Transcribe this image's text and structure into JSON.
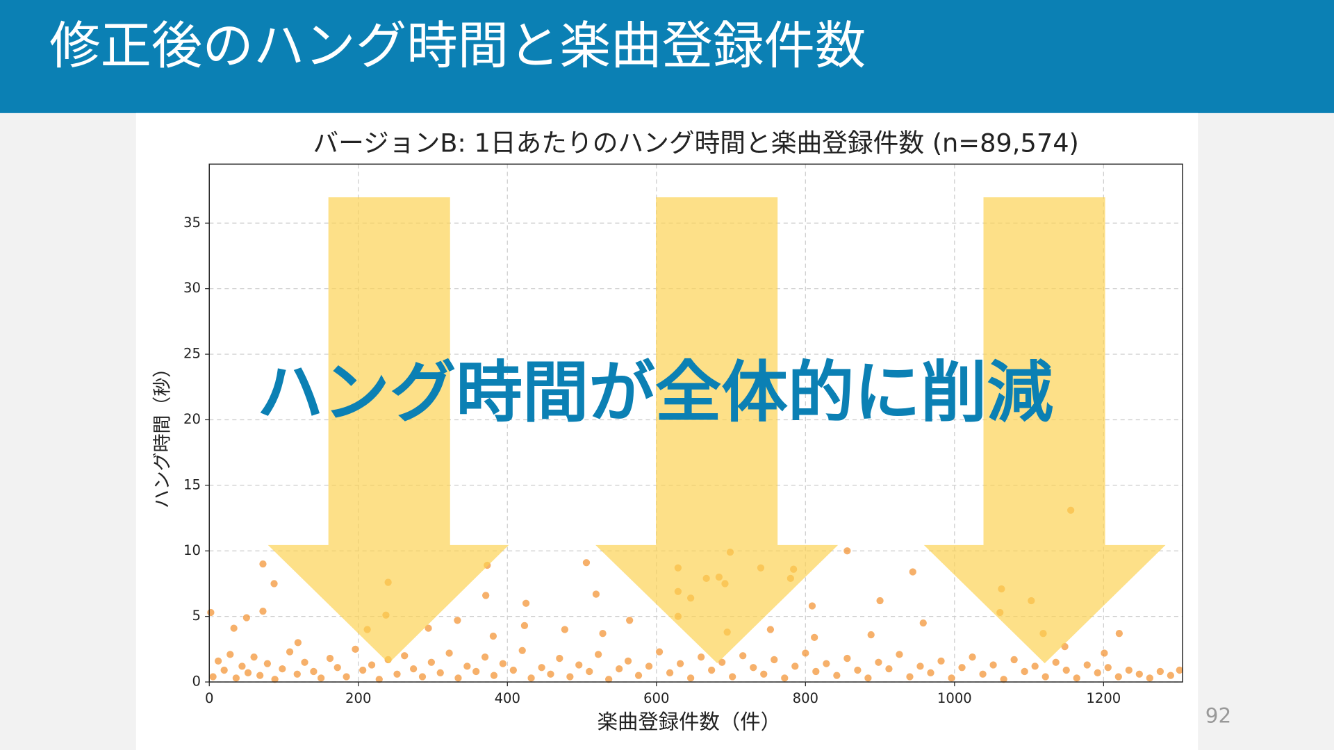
{
  "slide": {
    "title": "修正後のハング時間と楽曲登録件数",
    "annotation": "ハング時間が全体的に削減",
    "page_number": "92"
  },
  "chart_data": {
    "type": "scatter",
    "title": "バージョンB: 1日あたりのハング時間と楽曲登録件数 (n=89,574)",
    "x_label": "楽曲登録件数（件）",
    "y_label": "ハング時間（秒）",
    "x": [
      5,
      12,
      20,
      28,
      36,
      44,
      52,
      60,
      68,
      78,
      88,
      98,
      108,
      118,
      128,
      140,
      150,
      162,
      172,
      184,
      196,
      206,
      218,
      228,
      240,
      252,
      262,
      274,
      286,
      298,
      310,
      322,
      334,
      346,
      358,
      370,
      382,
      394,
      408,
      420,
      432,
      446,
      458,
      470,
      484,
      496,
      510,
      522,
      536,
      550,
      562,
      576,
      590,
      604,
      618,
      632,
      646,
      660,
      674,
      688,
      702,
      716,
      730,
      744,
      758,
      772,
      786,
      800,
      814,
      828,
      842,
      856,
      870,
      884,
      898,
      912,
      926,
      940,
      954,
      968,
      982,
      996,
      1010,
      1024,
      1038,
      1052,
      1066,
      1080,
      1094,
      1108,
      1122,
      1136,
      1150,
      1164,
      1178,
      1192,
      1206,
      1220,
      1234,
      1248,
      1262,
      1276,
      1290,
      1302,
      72,
      87,
      2,
      72,
      240,
      237,
      373,
      371,
      506,
      425,
      519,
      629,
      629,
      646,
      667,
      684,
      699,
      692,
      740,
      784,
      780,
      809,
      856,
      944,
      900,
      1063,
      1103,
      1156,
      1061,
      1221,
      1119,
      958,
      888,
      812,
      753,
      695,
      629,
      564,
      528,
      477,
      423,
      381,
      333,
      294,
      212,
      119,
      50,
      33,
      1148,
      1201
    ],
    "y": [
      0.4,
      1.6,
      0.9,
      2.1,
      0.3,
      1.2,
      0.7,
      1.9,
      0.5,
      1.4,
      0.2,
      1.0,
      2.3,
      0.6,
      1.5,
      0.8,
      0.3,
      1.8,
      1.1,
      0.4,
      2.5,
      0.9,
      1.3,
      0.2,
      1.7,
      0.6,
      2.0,
      1.0,
      0.4,
      1.5,
      0.7,
      2.2,
      0.3,
      1.2,
      0.8,
      1.9,
      0.5,
      1.4,
      0.9,
      2.4,
      0.3,
      1.1,
      0.6,
      1.8,
      0.4,
      1.3,
      0.8,
      2.1,
      0.2,
      1.0,
      1.6,
      0.5,
      1.2,
      2.3,
      0.7,
      1.4,
      0.3,
      1.9,
      0.9,
      1.5,
      0.4,
      2.0,
      1.1,
      0.6,
      1.7,
      0.3,
      1.2,
      2.2,
      0.8,
      1.4,
      0.5,
      1.8,
      0.9,
      0.3,
      1.5,
      1.0,
      2.1,
      0.4,
      1.2,
      0.7,
      1.6,
      0.3,
      1.1,
      1.9,
      0.6,
      1.3,
      0.2,
      1.7,
      0.8,
      1.2,
      0.4,
      1.5,
      0.9,
      0.3,
      1.3,
      0.7,
      1.1,
      0.4,
      0.9,
      0.6,
      0.3,
      0.8,
      0.5,
      0.9,
      9.0,
      7.5,
      5.3,
      5.4,
      7.6,
      5.1,
      8.9,
      6.6,
      9.1,
      6.0,
      6.7,
      8.7,
      6.9,
      6.4,
      7.9,
      8.0,
      9.9,
      7.5,
      8.7,
      8.6,
      7.9,
      5.8,
      10.0,
      8.4,
      6.2,
      7.1,
      6.2,
      13.1,
      5.3,
      3.7,
      3.7,
      4.5,
      3.6,
      3.4,
      4.0,
      3.8,
      5.0,
      4.7,
      3.7,
      4.0,
      4.3,
      3.5,
      4.7,
      4.1,
      4.0,
      3.0,
      4.9,
      4.1,
      2.7,
      2.2
    ],
    "color": "#f28e2b",
    "xlim": [
      0,
      1306
    ],
    "ylim": [
      0,
      39.5
    ],
    "xticks": [
      0,
      200,
      400,
      600,
      800,
      1000,
      1200
    ],
    "yticks": [
      0,
      5,
      10,
      15,
      20,
      25,
      30,
      35
    ],
    "grid": true
  }
}
